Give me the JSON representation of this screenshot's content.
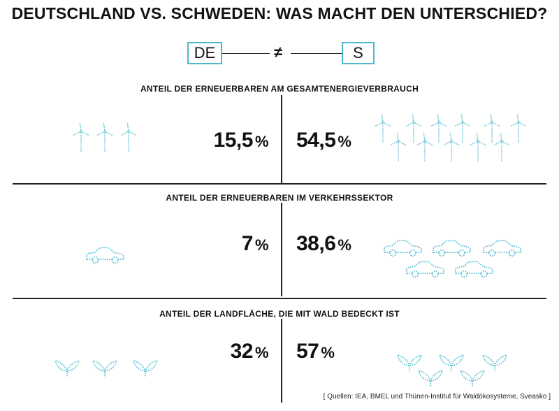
{
  "title": "DEUTSCHLAND VS. SCHWEDEN: WAS MACHT DEN UNTERSCHIED?",
  "badges": {
    "de": "DE",
    "se": "S",
    "neq": "≠"
  },
  "colors": {
    "accent": "#4fb8cf",
    "icon": "#62c3d6",
    "text": "#111111"
  },
  "chart_data": {
    "type": "table",
    "columns": [
      "DE",
      "S"
    ],
    "rows": [
      {
        "label": "ANTEIL DER ERNEUERBAREN AM GESAMTENERGIEVERBRAUCH",
        "de": 15.5,
        "se": 54.5,
        "icon": "wind-turbine-icon"
      },
      {
        "label": "ANTEIL DER ERNEUERBAREN IM VERKEHRSSEKTOR",
        "de": 7,
        "se": 38.6,
        "icon": "car-icon"
      },
      {
        "label": "ANTEIL DER LANDFLÄCHE, DIE MIT WALD BEDECKT IST",
        "de": 32,
        "se": 57,
        "icon": "leaf-icon"
      }
    ]
  },
  "sections": [
    {
      "label": "ANTEIL DER ERNEUERBAREN AM GESAMTENERGIEVERBRAUCH",
      "de_value": "15,5",
      "se_value": "54,5",
      "unit": "%"
    },
    {
      "label": "ANTEIL DER ERNEUERBAREN IM VERKEHRSSEKTOR",
      "de_value": "7",
      "se_value": "38,6",
      "unit": "%"
    },
    {
      "label": "ANTEIL DER LANDFLÄCHE, DIE MIT WALD BEDECKT IST",
      "de_value": "32",
      "se_value": "57",
      "unit": "%"
    }
  ],
  "source": "[ Quellen: IEA, BMEL und Thünen-Institut für Waldökosysteme, Sveasko ]"
}
